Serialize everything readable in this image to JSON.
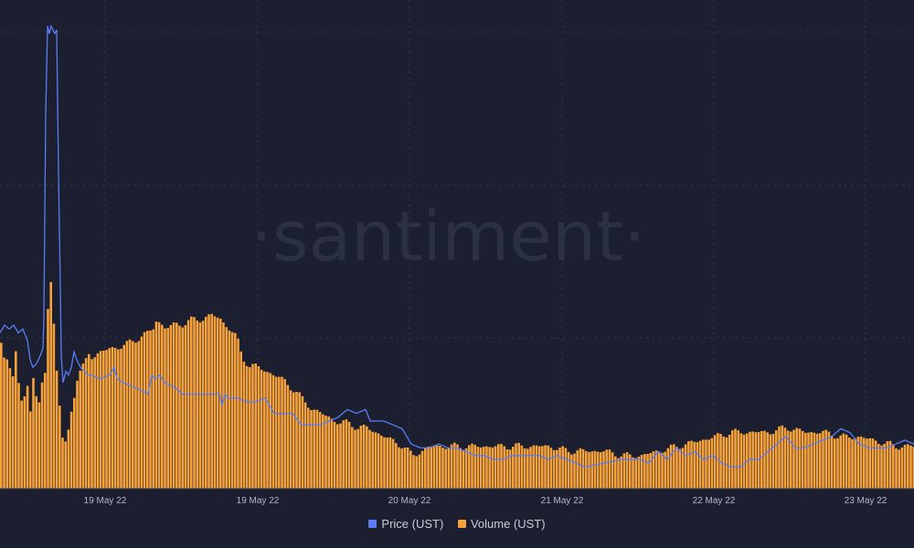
{
  "watermark": "·santiment·",
  "legend": [
    {
      "label": "Price (UST)",
      "color": "#5b7cf5"
    },
    {
      "label": "Volume (UST)",
      "color": "#f7a23b"
    }
  ],
  "colors": {
    "background": "#1b1f2f",
    "grid": "#2e3447",
    "tick": "#b3b7c4",
    "price": "#5b7cf5",
    "volume": "#f7a23b"
  },
  "chart_data": {
    "type": "bar",
    "title": "",
    "x_ticks": [
      "19 May 22",
      "19 May 22",
      "20 May 22",
      "21 May 22",
      "22 May 22",
      "23 May 22"
    ],
    "grid": true,
    "legend_position": "bottom",
    "series": [
      {
        "name": "Volume (UST)",
        "type": "bar",
        "points": [
          [
            0,
            0.31
          ],
          [
            4,
            0.27
          ],
          [
            8,
            0.28
          ],
          [
            12,
            0.23
          ],
          [
            16,
            0.29
          ],
          [
            20,
            0.2
          ],
          [
            24,
            0.17
          ],
          [
            28,
            0.24
          ],
          [
            32,
            0.17
          ],
          [
            36,
            0.25
          ],
          [
            40,
            0.15
          ],
          [
            44,
            0.22
          ],
          [
            48,
            0.25
          ],
          [
            51,
            0.38
          ],
          [
            54,
            0.45
          ],
          [
            57,
            0.37
          ],
          [
            60,
            0.27
          ],
          [
            63,
            0.2
          ],
          [
            66,
            0.13
          ],
          [
            68,
            0.09
          ],
          [
            72,
            0.1
          ],
          [
            76,
            0.16
          ],
          [
            80,
            0.2
          ],
          [
            84,
            0.24
          ],
          [
            88,
            0.25
          ],
          [
            92,
            0.27
          ],
          [
            96,
            0.29
          ],
          [
            100,
            0.28
          ],
          [
            110,
            0.29
          ],
          [
            120,
            0.3
          ],
          [
            130,
            0.3
          ],
          [
            140,
            0.31
          ],
          [
            150,
            0.32
          ],
          [
            160,
            0.33
          ],
          [
            166,
            0.34
          ],
          [
            170,
            0.36
          ],
          [
            180,
            0.34
          ],
          [
            190,
            0.35
          ],
          [
            200,
            0.35
          ],
          [
            210,
            0.36
          ],
          [
            220,
            0.36
          ],
          [
            230,
            0.37
          ],
          [
            240,
            0.36
          ],
          [
            250,
            0.34
          ],
          [
            258,
            0.32
          ],
          [
            264,
            0.28
          ],
          [
            272,
            0.26
          ],
          [
            280,
            0.26
          ],
          [
            290,
            0.25
          ],
          [
            300,
            0.24
          ],
          [
            310,
            0.23
          ],
          [
            320,
            0.21
          ],
          [
            330,
            0.19
          ],
          [
            340,
            0.17
          ],
          [
            350,
            0.16
          ],
          [
            360,
            0.15
          ],
          [
            370,
            0.14
          ],
          [
            380,
            0.14
          ],
          [
            390,
            0.13
          ],
          [
            400,
            0.13
          ],
          [
            410,
            0.12
          ],
          [
            420,
            0.11
          ],
          [
            430,
            0.1
          ],
          [
            440,
            0.09
          ],
          [
            450,
            0.07
          ],
          [
            460,
            0.08
          ],
          [
            470,
            0.09
          ],
          [
            480,
            0.09
          ],
          [
            490,
            0.09
          ],
          [
            500,
            0.09
          ],
          [
            520,
            0.09
          ],
          [
            540,
            0.09
          ],
          [
            560,
            0.09
          ],
          [
            580,
            0.09
          ],
          [
            600,
            0.09
          ],
          [
            620,
            0.08
          ],
          [
            640,
            0.08
          ],
          [
            660,
            0.08
          ],
          [
            680,
            0.07
          ],
          [
            700,
            0.07
          ],
          [
            720,
            0.08
          ],
          [
            740,
            0.09
          ],
          [
            760,
            0.1
          ],
          [
            780,
            0.11
          ],
          [
            800,
            0.12
          ],
          [
            820,
            0.12
          ],
          [
            840,
            0.12
          ],
          [
            860,
            0.13
          ],
          [
            880,
            0.12
          ],
          [
            900,
            0.12
          ],
          [
            920,
            0.11
          ],
          [
            940,
            0.11
          ],
          [
            960,
            0.1
          ],
          [
            980,
            0.09
          ],
          [
            1000,
            0.09
          ]
        ]
      },
      {
        "name": "Price (UST)",
        "type": "line",
        "points": [
          [
            0,
            0.18
          ],
          [
            5,
            0.2
          ],
          [
            10,
            0.19
          ],
          [
            15,
            0.2
          ],
          [
            20,
            0.18
          ],
          [
            25,
            0.19
          ],
          [
            30,
            0.16
          ],
          [
            33,
            0.11
          ],
          [
            36,
            0.09
          ],
          [
            40,
            0.1
          ],
          [
            44,
            0.12
          ],
          [
            47,
            0.14
          ],
          [
            48,
            0.22
          ],
          [
            50,
            0.75
          ],
          [
            52,
            0.98
          ],
          [
            54,
            0.96
          ],
          [
            56,
            0.98
          ],
          [
            58,
            0.97
          ],
          [
            60,
            0.96
          ],
          [
            62,
            0.97
          ],
          [
            64,
            0.6
          ],
          [
            66,
            0.3
          ],
          [
            67,
            0.12
          ],
          [
            69,
            0.05
          ],
          [
            72,
            0.08
          ],
          [
            75,
            0.07
          ],
          [
            78,
            0.09
          ],
          [
            81,
            0.13
          ],
          [
            84,
            0.11
          ],
          [
            88,
            0.09
          ],
          [
            92,
            0.08
          ],
          [
            96,
            0.07
          ],
          [
            100,
            0.07
          ],
          [
            110,
            0.06
          ],
          [
            120,
            0.07
          ],
          [
            125,
            0.09
          ],
          [
            128,
            0.06
          ],
          [
            135,
            0.05
          ],
          [
            145,
            0.04
          ],
          [
            155,
            0.03
          ],
          [
            162,
            0.02
          ],
          [
            166,
            0.07
          ],
          [
            170,
            0.06
          ],
          [
            175,
            0.07
          ],
          [
            180,
            0.05
          ],
          [
            190,
            0.04
          ],
          [
            200,
            0.02
          ],
          [
            210,
            0.02
          ],
          [
            220,
            0.02
          ],
          [
            230,
            0.02
          ],
          [
            240,
            0.02
          ],
          [
            243,
            -0.01
          ],
          [
            246,
            0.02
          ],
          [
            250,
            0.01
          ],
          [
            260,
            0.01
          ],
          [
            270,
            0.0
          ],
          [
            280,
            0.0
          ],
          [
            290,
            0.01
          ],
          [
            295,
            -0.01
          ],
          [
            300,
            -0.03
          ],
          [
            310,
            -0.03
          ],
          [
            320,
            -0.03
          ],
          [
            330,
            -0.06
          ],
          [
            340,
            -0.06
          ],
          [
            350,
            -0.06
          ],
          [
            360,
            -0.05
          ],
          [
            370,
            -0.04
          ],
          [
            380,
            -0.02
          ],
          [
            390,
            -0.03
          ],
          [
            400,
            -0.02
          ],
          [
            405,
            -0.05
          ],
          [
            410,
            -0.05
          ],
          [
            420,
            -0.05
          ],
          [
            430,
            -0.06
          ],
          [
            440,
            -0.07
          ],
          [
            450,
            -0.11
          ],
          [
            460,
            -0.12
          ],
          [
            470,
            -0.12
          ],
          [
            480,
            -0.11
          ],
          [
            490,
            -0.12
          ],
          [
            500,
            -0.12
          ],
          [
            510,
            -0.13
          ],
          [
            520,
            -0.14
          ],
          [
            530,
            -0.14
          ],
          [
            540,
            -0.15
          ],
          [
            550,
            -0.15
          ],
          [
            560,
            -0.14
          ],
          [
            570,
            -0.14
          ],
          [
            580,
            -0.14
          ],
          [
            590,
            -0.14
          ],
          [
            600,
            -0.15
          ],
          [
            610,
            -0.14
          ],
          [
            620,
            -0.15
          ],
          [
            630,
            -0.16
          ],
          [
            640,
            -0.17
          ],
          [
            660,
            -0.16
          ],
          [
            680,
            -0.15
          ],
          [
            700,
            -0.15
          ],
          [
            710,
            -0.16
          ],
          [
            720,
            -0.13
          ],
          [
            730,
            -0.15
          ],
          [
            740,
            -0.12
          ],
          [
            750,
            -0.14
          ],
          [
            760,
            -0.13
          ],
          [
            770,
            -0.15
          ],
          [
            780,
            -0.14
          ],
          [
            790,
            -0.16
          ],
          [
            800,
            -0.17
          ],
          [
            810,
            -0.17
          ],
          [
            820,
            -0.15
          ],
          [
            830,
            -0.15
          ],
          [
            840,
            -0.13
          ],
          [
            850,
            -0.11
          ],
          [
            860,
            -0.09
          ],
          [
            870,
            -0.12
          ],
          [
            880,
            -0.12
          ],
          [
            890,
            -0.11
          ],
          [
            900,
            -0.1
          ],
          [
            910,
            -0.09
          ],
          [
            920,
            -0.07
          ],
          [
            930,
            -0.08
          ],
          [
            940,
            -0.11
          ],
          [
            950,
            -0.12
          ],
          [
            960,
            -0.12
          ],
          [
            970,
            -0.12
          ],
          [
            980,
            -0.11
          ],
          [
            990,
            -0.1
          ],
          [
            1000,
            -0.11
          ]
        ]
      }
    ]
  }
}
